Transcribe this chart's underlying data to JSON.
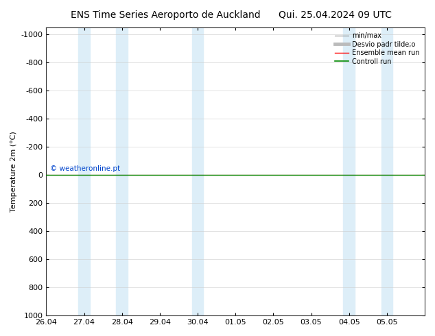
{
  "title_left": "ENS Time Series Aeroporto de Auckland",
  "title_right": "Qui. 25.04.2024 09 UTC",
  "ylabel": "Temperature 2m (°C)",
  "ylim_bottom": 1000,
  "ylim_top": -1050,
  "yticks": [
    -1000,
    -800,
    -600,
    -400,
    -200,
    0,
    200,
    400,
    600,
    800,
    1000
  ],
  "xlim_left": 0,
  "xlim_right": 10,
  "xtick_labels": [
    "26.04",
    "27.04",
    "28.04",
    "29.04",
    "30.04",
    "01.05",
    "02.05",
    "03.05",
    "04.05",
    "05.05"
  ],
  "xtick_positions": [
    0,
    1,
    2,
    3,
    4,
    5,
    6,
    7,
    8,
    9
  ],
  "blue_bands": [
    [
      0.85,
      1.15
    ],
    [
      1.85,
      2.15
    ],
    [
      3.85,
      4.15
    ],
    [
      7.85,
      8.15
    ],
    [
      8.85,
      9.15
    ]
  ],
  "flat_line_y": 0,
  "flat_line_color_green": "#008800",
  "flat_line_color_red": "#ff0000",
  "watermark": "© weatheronline.pt",
  "watermark_color": "#0044cc",
  "band_color": "#ddeef8",
  "title_fontsize": 10,
  "tick_fontsize": 8,
  "ylabel_fontsize": 8
}
